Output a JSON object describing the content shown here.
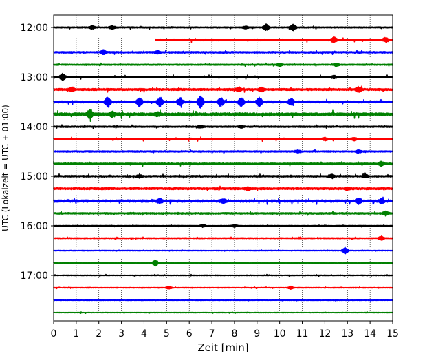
{
  "chart_data": {
    "type": "line",
    "title": "",
    "xlabel": "Zeit  [min]",
    "ylabel": "UTC (Lokalzeit = UTC + 01:00)",
    "xlim": [
      0,
      15
    ],
    "x_ticks": [
      0,
      1,
      2,
      3,
      4,
      5,
      6,
      7,
      8,
      9,
      10,
      11,
      12,
      13,
      14,
      15
    ],
    "y_hour_labels": [
      "12:00",
      "13:00",
      "14:00",
      "15:00",
      "16:00",
      "17:00"
    ],
    "grid": "vertical dotted",
    "trace_colors": [
      "#000000",
      "#ff0000",
      "#0000ff",
      "#008000"
    ],
    "traces": [
      {
        "start": "12:00",
        "start_min": 0,
        "amp": 0.6,
        "bursts": [
          [
            1.7,
            2.5
          ],
          [
            2.6,
            2.5
          ],
          [
            8.5,
            2
          ],
          [
            9.4,
            5
          ],
          [
            10.6,
            5
          ]
        ]
      },
      {
        "start": "12:15",
        "start_min": 4.5,
        "amp": 0.9,
        "bursts": [
          [
            12.4,
            4
          ],
          [
            14.7,
            3
          ]
        ]
      },
      {
        "start": "12:30",
        "start_min": 0,
        "amp": 0.8,
        "bursts": [
          [
            2.2,
            3
          ],
          [
            4.6,
            2
          ]
        ]
      },
      {
        "start": "12:45",
        "start_min": 0,
        "amp": 0.6,
        "bursts": [
          [
            10,
            2
          ],
          [
            12.5,
            2
          ]
        ]
      },
      {
        "start": "13:00",
        "start_min": 0,
        "amp": 0.8,
        "bursts": [
          [
            0.4,
            5
          ],
          [
            12.4,
            2
          ]
        ]
      },
      {
        "start": "13:15",
        "start_min": 0,
        "amp": 1.0,
        "bursts": [
          [
            0.8,
            3
          ],
          [
            8.2,
            3
          ],
          [
            9.2,
            3
          ],
          [
            13.5,
            4
          ]
        ]
      },
      {
        "start": "13:30",
        "start_min": 0,
        "amp": 1.0,
        "bursts": [
          [
            2.4,
            8
          ],
          [
            3.8,
            7
          ],
          [
            4.7,
            7
          ],
          [
            5.6,
            6
          ],
          [
            6.5,
            9
          ],
          [
            7.4,
            6
          ],
          [
            8.3,
            7
          ],
          [
            9.1,
            7
          ],
          [
            10.5,
            5
          ]
        ]
      },
      {
        "start": "13:45",
        "start_min": 0,
        "amp": 1.5,
        "bursts": [
          [
            1.6,
            7
          ],
          [
            2.6,
            4
          ],
          [
            4.6,
            2
          ]
        ]
      },
      {
        "start": "14:00",
        "start_min": 0,
        "amp": 0.7,
        "bursts": [
          [
            6.5,
            2
          ],
          [
            8.3,
            2
          ]
        ]
      },
      {
        "start": "14:15",
        "start_min": 0,
        "amp": 0.8,
        "bursts": [
          [
            12,
            2
          ],
          [
            13.3,
            2
          ]
        ]
      },
      {
        "start": "14:30",
        "start_min": 0,
        "amp": 0.7,
        "bursts": [
          [
            10.8,
            2
          ],
          [
            13.5,
            2
          ]
        ]
      },
      {
        "start": "14:45",
        "start_min": 0,
        "amp": 0.9,
        "bursts": [
          [
            14.5,
            3
          ]
        ]
      },
      {
        "start": "15:00",
        "start_min": 0,
        "amp": 0.8,
        "bursts": [
          [
            3.8,
            2
          ],
          [
            12.3,
            3
          ],
          [
            13.8,
            2
          ]
        ]
      },
      {
        "start": "15:15",
        "start_min": 0,
        "amp": 1.0,
        "bursts": [
          [
            8.6,
            2
          ],
          [
            13,
            2
          ]
        ]
      },
      {
        "start": "15:30",
        "start_min": 0,
        "amp": 1.2,
        "bursts": [
          [
            4.7,
            3
          ],
          [
            7.5,
            3
          ],
          [
            13.5,
            4
          ],
          [
            14.5,
            3
          ]
        ]
      },
      {
        "start": "15:45",
        "start_min": 0,
        "amp": 0.8,
        "bursts": [
          [
            14.7,
            3
          ]
        ]
      },
      {
        "start": "16:00",
        "start_min": 0,
        "amp": 0.4,
        "bursts": [
          [
            6.6,
            2
          ],
          [
            8,
            2
          ]
        ]
      },
      {
        "start": "16:15",
        "start_min": 0,
        "amp": 0.5,
        "bursts": [
          [
            14.5,
            3
          ]
        ]
      },
      {
        "start": "16:30",
        "start_min": 0,
        "amp": 0.35,
        "bursts": [
          [
            12.9,
            5
          ]
        ]
      },
      {
        "start": "16:45",
        "start_min": 0,
        "amp": 0.35,
        "bursts": [
          [
            4.5,
            5
          ]
        ]
      },
      {
        "start": "17:00",
        "start_min": 0,
        "amp": 0.35,
        "bursts": []
      },
      {
        "start": "17:15",
        "start_min": 0,
        "amp": 0.35,
        "bursts": [
          [
            5.1,
            2
          ],
          [
            10.5,
            2
          ]
        ]
      },
      {
        "start": "17:30",
        "start_min": 0,
        "amp": 0.3,
        "bursts": []
      },
      {
        "start": "17:45",
        "start_min": 0,
        "amp": 0.3,
        "bursts": []
      }
    ]
  }
}
